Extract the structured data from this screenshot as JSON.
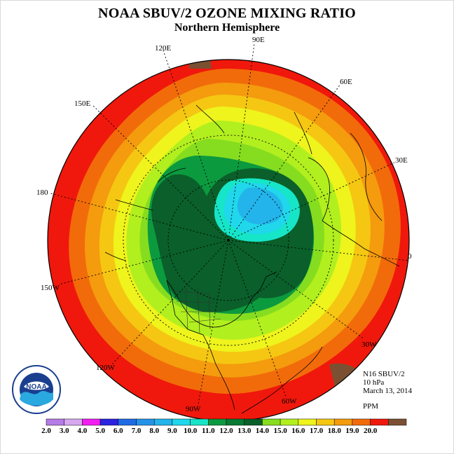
{
  "header": {
    "title": "NOAA SBUV/2 OZONE MIXING RATIO",
    "subtitle": "Northern Hemisphere"
  },
  "meta": {
    "instrument": "N16 SBUV/2",
    "level": "10 hPa",
    "date": "March 13, 2014",
    "units": "PPM"
  },
  "longitude_labels": [
    "90E",
    "60E",
    "30E",
    "0",
    "30W",
    "60W",
    "90W",
    "120W",
    "150W",
    "180",
    "150E",
    "120E"
  ],
  "colorbar": {
    "ticks": [
      "2.0",
      "3.0",
      "4.0",
      "5.0",
      "6.0",
      "7.0",
      "8.0",
      "9.0",
      "10.0",
      "11.0",
      "12.0",
      "13.0",
      "14.0",
      "15.0",
      "16.0",
      "17.0",
      "18.0",
      "19.0",
      "20.0"
    ],
    "colors": [
      "#b57be6",
      "#d7a7f0",
      "#f21df2",
      "#2b22e0",
      "#1f6be6",
      "#2592e8",
      "#22b4ea",
      "#20d7ec",
      "#16e5c7",
      "#0c9a3f",
      "#087a34",
      "#0a5f2a",
      "#86dd1f",
      "#b2ef1e",
      "#eef41c",
      "#f5c712",
      "#f49b0e",
      "#f26b0a",
      "#f0180c",
      "#7b5032"
    ]
  },
  "logo": {
    "text": "NOAA"
  }
}
